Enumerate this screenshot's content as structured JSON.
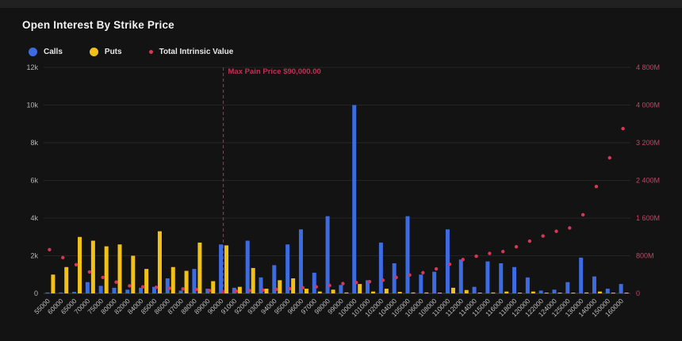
{
  "header": {
    "title": "Open Interest By Strike Price"
  },
  "legend": {
    "items": [
      {
        "label": "Calls",
        "color": "#3D6BE1",
        "swatch": "big"
      },
      {
        "label": "Puts",
        "color": "#F2C116",
        "swatch": "big"
      },
      {
        "label": "Total Intrinsic Value",
        "color": "#D63756",
        "swatch": "small"
      }
    ]
  },
  "annotation": {
    "max_pain_label": "Max Pain Price $90,000.00",
    "max_pain_strike": "90000",
    "line_color": "#9E2A4E",
    "label_color": "#C13058"
  },
  "colors": {
    "background": "#131313",
    "grid": "#242424",
    "axis_line": "#3F3F3F",
    "left_axis_text": "#B5B5B5",
    "x_axis_text": "#BDBDBD",
    "right_axis_text": "#BF4668",
    "calls": "#3D6BE1",
    "puts": "#F2C116",
    "intrinsic": "#D63756"
  },
  "chart_data": {
    "type": "bar",
    "title": "Open Interest By Strike Price",
    "grid": true,
    "legend_position": "top-left",
    "categories": [
      "55000",
      "60000",
      "65000",
      "70000",
      "75000",
      "80000",
      "82000",
      "84000",
      "85000",
      "86000",
      "87000",
      "88000",
      "89000",
      "90000",
      "91000",
      "92000",
      "93000",
      "94000",
      "95000",
      "96000",
      "97000",
      "98000",
      "99000",
      "100000",
      "101000",
      "102000",
      "104000",
      "105000",
      "106000",
      "108000",
      "110000",
      "112000",
      "114000",
      "115000",
      "116000",
      "118000",
      "120000",
      "122000",
      "124000",
      "125000",
      "130000",
      "140000",
      "150000",
      "160000"
    ],
    "series": [
      {
        "name": "Calls",
        "type": "bar",
        "axis": "left",
        "values": [
          50,
          50,
          80,
          600,
          400,
          300,
          200,
          300,
          350,
          800,
          150,
          1300,
          250,
          2600,
          300,
          2800,
          850,
          1500,
          2600,
          3400,
          1100,
          4100,
          450,
          10000,
          700,
          2700,
          1600,
          4100,
          1000,
          1150,
          3400,
          1800,
          350,
          1700,
          1600,
          1400,
          850,
          150,
          200,
          600,
          1900,
          900,
          250,
          500
        ]
      },
      {
        "name": "Puts",
        "type": "bar",
        "axis": "left",
        "values": [
          1000,
          1400,
          3000,
          2800,
          2500,
          2600,
          2000,
          1300,
          3300,
          1400,
          1200,
          2700,
          650,
          2550,
          350,
          1350,
          250,
          700,
          800,
          250,
          100,
          200,
          50,
          500,
          100,
          250,
          80,
          50,
          50,
          30,
          300,
          180,
          30,
          50,
          100,
          30,
          100,
          20,
          20,
          30,
          50,
          100,
          20,
          20
        ]
      },
      {
        "name": "Total Intrinsic Value",
        "type": "scatter",
        "axis": "right",
        "values": [
          930,
          760,
          610,
          455,
          340,
          240,
          160,
          140,
          130,
          110,
          95,
          85,
          60,
          35,
          50,
          60,
          70,
          85,
          100,
          120,
          140,
          170,
          210,
          230,
          250,
          280,
          340,
          390,
          440,
          520,
          620,
          720,
          790,
          850,
          890,
          990,
          1110,
          1220,
          1320,
          1390,
          1670,
          2270,
          2880,
          3500
        ]
      }
    ],
    "left_axis": {
      "min": 0,
      "max": 12000,
      "tick_values": [
        0,
        2000,
        4000,
        6000,
        8000,
        10000,
        12000
      ],
      "tick_labels": [
        "0",
        "2k",
        "4k",
        "6k",
        "8k",
        "10k",
        "12k"
      ]
    },
    "right_axis": {
      "min": 0,
      "max": 4800,
      "tick_values": [
        0,
        800,
        1600,
        2400,
        3200,
        4000,
        4800
      ],
      "tick_labels": [
        "0",
        "800M",
        "1 600M",
        "2 400M",
        "3 200M",
        "4 000M",
        "4 800M"
      ],
      "unit": "M"
    },
    "max_pain": {
      "category": "90000",
      "label": "Max Pain Price $90,000.00"
    }
  }
}
